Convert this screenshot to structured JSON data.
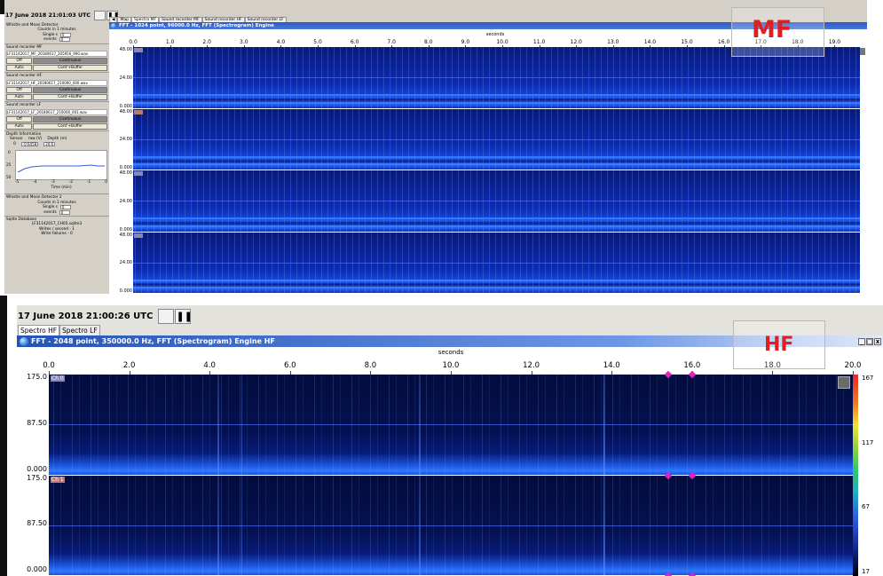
{
  "mf": {
    "timestamp": "17 June 2018 21:01:03 UTC",
    "tabs": [
      "Map",
      "Spectro MF",
      "Sound recorder MF",
      "Sound recorder HF",
      "Sound recorder LF"
    ],
    "active_tab": "Spectro MF",
    "fft_title": "FFT - 1024 point, 96000.0 Hz, FFT (Spectrogram) Engine",
    "axis_title": "seconds",
    "x_ticks": [
      "0.0",
      "1.0",
      "2.0",
      "3.0",
      "4.0",
      "5.0",
      "6.0",
      "7.0",
      "8.0",
      "9.0",
      "10.0",
      "11.0",
      "12.0",
      "13.0",
      "14.0",
      "15.0",
      "16.0",
      "17.0",
      "18.0",
      "19.0"
    ],
    "panel_y_labels": [
      "48.00",
      "24.00",
      "0.000"
    ],
    "overlay_label": "MF",
    "sidebar": {
      "wmd1_title": "Whistle and Moan Detector",
      "wmd1_counts": "Counts in 1 minutes",
      "wmd1_single_label": "Single s",
      "wmd1_single_val": "0",
      "wmd1_events_label": "events",
      "wmd1_events_val": "0",
      "srmf_title": "Sound recorder MF",
      "srmf_file": "LF31142017_MF_20180617_205956_990.wav",
      "srhf_title": "Sound recorder HF",
      "srhf_file": "LF31142017_HF_20180617_210000_000.wav",
      "srlf_title": "Sound recorder LF",
      "srlf_file": "LF31142017_LF_20180617_210000_001.wav",
      "btn_off": "Off",
      "btn_continuous": "Continuous",
      "btn_auto": "Auto",
      "btn_contbuffer": "Cont'+Buffer",
      "depth_title": "Depth Information",
      "depth_col_sensor": "Sensor",
      "depth_col_raw": "raw (V)",
      "depth_col_depth": "Depth (m)",
      "depth_sensor": "0",
      "depth_raw": "-0.6458",
      "depth_depth": "24.6",
      "depth_y_ticks": [
        "0",
        "25",
        "50"
      ],
      "depth_x_ticks": [
        "-5",
        "-4",
        "-3",
        "-2",
        "-1",
        "0"
      ],
      "depth_x_label": "Time (min)",
      "wmd2_title": "Whistle and Moan Detector 2",
      "wmd2_counts": "Counts in 1 minutes",
      "wmd2_single_label": "Single s",
      "wmd2_single_val": "0",
      "wmd2_events_label": "events",
      "wmd2_events_val": "0",
      "sqlite_title": "Sqlite Database",
      "sqlite_file": "LF31142017_CH05.sqlite3",
      "sqlite_writes": "Writes / second - 1",
      "sqlite_failures": "Write failures - 0"
    }
  },
  "hf": {
    "timestamp": "17 June 2018 21:00:26 UTC",
    "tabs": [
      "Spectro HF",
      "Spectro LF"
    ],
    "active_tab": "Spectro HF",
    "fft_title": "FFT - 2048 point, 350000.0 Hz, FFT (Spectrogram) Engine HF",
    "axis_title": "seconds",
    "x_ticks": [
      "0.0",
      "2.0",
      "4.0",
      "6.0",
      "8.0",
      "10.0",
      "12.0",
      "14.0",
      "16.0",
      "18.0",
      "20.0"
    ],
    "panel_y_labels": [
      "175.0",
      "87.50",
      "0.000"
    ],
    "colorbar_ticks": [
      "167",
      "117",
      "67",
      "17"
    ],
    "overlay_label": "HF",
    "channel_tags": [
      "Ch 0",
      "Ch 1"
    ],
    "window_buttons": [
      "_",
      "□",
      "x"
    ]
  },
  "colors": {
    "title_blue": "#2a59c4",
    "overlay_red": "#e02020",
    "spectrogram_bg": "#041150"
  }
}
